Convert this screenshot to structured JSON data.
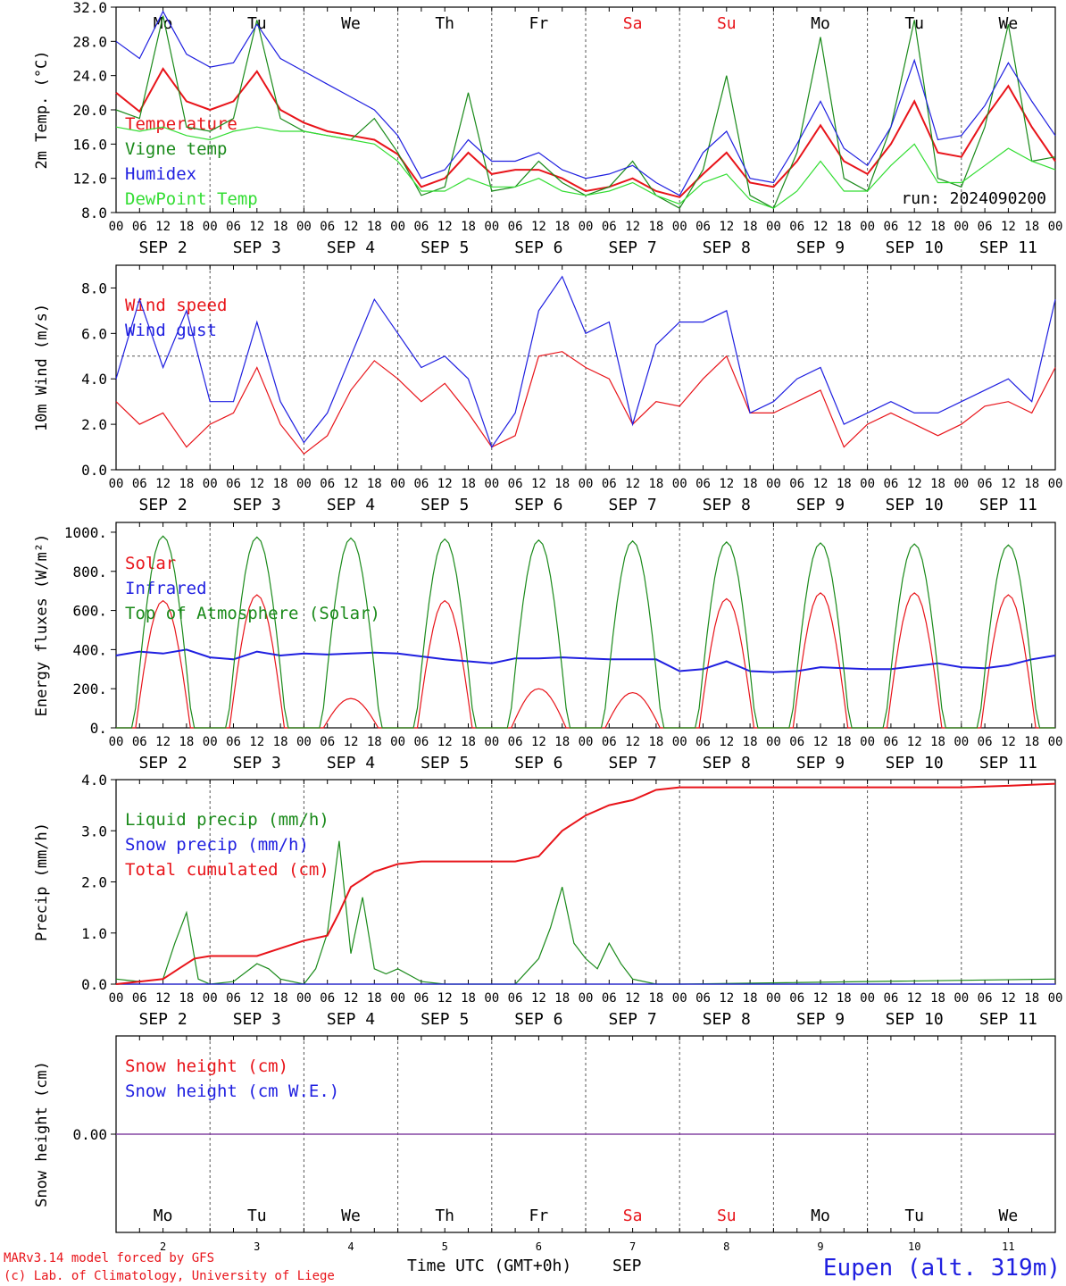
{
  "colors": {
    "red": "#e8141a",
    "green": "#1a8a1a",
    "blue": "#1f1fe0",
    "lightgreen": "#33dd33",
    "purple": "#7f3fa0",
    "axis": "#000000",
    "grid": "#555555"
  },
  "days": {
    "weekdays": [
      "Mo",
      "Tu",
      "We",
      "Th",
      "Fr",
      "Sa",
      "Su",
      "Mo",
      "Tu",
      "We"
    ],
    "weekend_flags": [
      false,
      false,
      false,
      false,
      false,
      true,
      true,
      false,
      false,
      false
    ],
    "dates": [
      "SEP  2",
      "SEP  3",
      "SEP  4",
      "SEP  5",
      "SEP  6",
      "SEP  7",
      "SEP  8",
      "SEP  9",
      "SEP 10",
      "SEP 11"
    ],
    "day_numbers": [
      "2",
      "3",
      "4",
      "5",
      "6",
      "7",
      "8",
      "9",
      "10",
      "11"
    ],
    "hour_ticks": [
      "00",
      "06",
      "12",
      "18"
    ],
    "final_tick": "00"
  },
  "footer": {
    "model_line": "MARv3.14 model forced by GFS",
    "copyright_line": "(c) Lab. of Climatology, University of Liege",
    "time_axis_label": "Time UTC (GMT+0h)",
    "month_label": "SEP",
    "station": "Eupen (alt. 319m)"
  },
  "chart_data": [
    {
      "id": "temperature",
      "type": "line",
      "ylabel": "2m Temp. (°C)",
      "ylim": [
        8.0,
        32.0
      ],
      "yticks": [
        "8.0",
        "12.0",
        "16.0",
        "20.0",
        "24.0",
        "28.0",
        "32.0"
      ],
      "annotation": "run: 2024090200",
      "x_hours": [
        0,
        6,
        12,
        18,
        24,
        30,
        36,
        42,
        48,
        54,
        60,
        66,
        72,
        78,
        84,
        90,
        96,
        102,
        108,
        114,
        120,
        126,
        132,
        138,
        144,
        150,
        156,
        162,
        168,
        174,
        180,
        186,
        192,
        198,
        204,
        210,
        216,
        222,
        228,
        234,
        240
      ],
      "series": [
        {
          "name": "Temperature",
          "color": "red",
          "values": [
            22.0,
            19.8,
            24.8,
            21.0,
            20.0,
            21.0,
            24.5,
            20.0,
            18.5,
            17.5,
            17.0,
            16.5,
            14.8,
            11.0,
            12.0,
            15.0,
            12.5,
            13.0,
            13.0,
            12.0,
            10.5,
            11.0,
            12.0,
            10.5,
            9.8,
            12.5,
            15.0,
            11.5,
            11.0,
            14.0,
            18.2,
            14.0,
            12.5,
            16.0,
            21.0,
            15.0,
            14.5,
            19.0,
            22.8,
            18.0,
            14.0
          ]
        },
        {
          "name": "Vigne temp",
          "color": "green",
          "values": [
            20.0,
            19.0,
            31.0,
            18.0,
            17.5,
            19.0,
            30.5,
            19.0,
            17.5,
            17.0,
            16.5,
            19.0,
            15.0,
            10.0,
            11.0,
            22.0,
            10.5,
            11.0,
            14.0,
            11.5,
            10.0,
            11.0,
            14.0,
            10.0,
            8.5,
            13.0,
            24.0,
            10.0,
            8.5,
            15.0,
            28.5,
            12.0,
            10.5,
            18.0,
            30.5,
            12.0,
            11.0,
            18.0,
            30.0,
            14.0,
            14.5
          ]
        },
        {
          "name": "Humidex",
          "color": "blue",
          "values": [
            28.0,
            26.0,
            31.5,
            26.5,
            25.0,
            25.5,
            30.0,
            26.0,
            24.5,
            23.0,
            21.5,
            20.0,
            17.0,
            12.0,
            13.0,
            16.5,
            14.0,
            14.0,
            15.0,
            13.0,
            12.0,
            12.5,
            13.5,
            11.5,
            10.0,
            15.0,
            17.5,
            12.0,
            11.5,
            16.0,
            21.0,
            15.5,
            13.5,
            18.0,
            25.8,
            16.5,
            17.0,
            20.5,
            25.5,
            21.0,
            17.0
          ]
        },
        {
          "name": "DewPoint Temp",
          "color": "lightgreen",
          "values": [
            18.0,
            17.5,
            18.0,
            17.0,
            16.5,
            17.5,
            18.0,
            17.5,
            17.5,
            17.0,
            16.5,
            16.0,
            14.0,
            10.5,
            10.5,
            12.0,
            11.0,
            11.0,
            12.0,
            10.5,
            10.0,
            10.5,
            11.5,
            10.0,
            9.0,
            11.5,
            12.5,
            9.5,
            8.5,
            10.5,
            14.0,
            10.5,
            10.5,
            13.5,
            16.0,
            11.5,
            11.5,
            13.5,
            15.5,
            14.0,
            13.0
          ]
        }
      ]
    },
    {
      "id": "wind",
      "type": "line",
      "ylabel": "10m Wind (m/s)",
      "ylim": [
        0.0,
        9.0
      ],
      "yticks": [
        "0.0",
        "2.0",
        "4.0",
        "6.0",
        "8.0"
      ],
      "reference_line": 5.0,
      "x_hours": [
        0,
        6,
        12,
        18,
        24,
        30,
        36,
        42,
        48,
        54,
        60,
        66,
        72,
        78,
        84,
        90,
        96,
        102,
        108,
        114,
        120,
        126,
        132,
        138,
        144,
        150,
        156,
        162,
        168,
        174,
        180,
        186,
        192,
        198,
        204,
        210,
        216,
        222,
        228,
        234,
        240
      ],
      "series": [
        {
          "name": "Wind speed",
          "color": "red",
          "values": [
            3.0,
            2.0,
            2.5,
            1.0,
            2.0,
            2.5,
            4.5,
            2.0,
            0.7,
            1.5,
            3.5,
            4.8,
            4.0,
            3.0,
            3.8,
            2.5,
            1.0,
            1.5,
            5.0,
            5.2,
            4.5,
            4.0,
            2.0,
            3.0,
            2.8,
            4.0,
            5.0,
            2.5,
            2.5,
            3.0,
            3.5,
            1.0,
            2.0,
            2.5,
            2.0,
            1.5,
            2.0,
            2.8,
            3.0,
            2.5,
            4.5
          ]
        },
        {
          "name": "Wind gust",
          "color": "blue",
          "values": [
            4.0,
            7.5,
            4.5,
            7.0,
            3.0,
            3.0,
            6.5,
            3.0,
            1.2,
            2.5,
            5.0,
            7.5,
            6.0,
            4.5,
            5.0,
            4.0,
            1.0,
            2.5,
            7.0,
            8.5,
            6.0,
            6.5,
            2.0,
            5.5,
            6.5,
            6.5,
            7.0,
            2.5,
            3.0,
            4.0,
            4.5,
            2.0,
            2.5,
            3.0,
            2.5,
            2.5,
            3.0,
            3.5,
            4.0,
            3.0,
            7.5
          ]
        }
      ]
    },
    {
      "id": "energy",
      "type": "line",
      "ylabel": "Energy fluxes (W/m²)",
      "ylim": [
        0,
        1050
      ],
      "yticks": [
        "0.",
        "200.",
        "400.",
        "600.",
        "800.",
        "1000."
      ],
      "series": [
        {
          "name": "Solar",
          "color": "red",
          "daily_peaks": [
            650,
            680,
            150,
            650,
            200,
            180,
            660,
            690,
            690,
            680
          ]
        },
        {
          "name": "Infrared",
          "color": "blue",
          "x_hours": [
            0,
            6,
            12,
            18,
            24,
            30,
            36,
            42,
            48,
            54,
            60,
            66,
            72,
            78,
            84,
            90,
            96,
            102,
            108,
            114,
            120,
            126,
            132,
            138,
            144,
            150,
            156,
            162,
            168,
            174,
            180,
            186,
            192,
            198,
            204,
            210,
            216,
            222,
            228,
            234,
            240
          ],
          "values": [
            370,
            390,
            380,
            400,
            360,
            350,
            390,
            370,
            380,
            375,
            380,
            385,
            380,
            365,
            350,
            340,
            330,
            355,
            355,
            360,
            355,
            350,
            350,
            350,
            290,
            300,
            340,
            290,
            285,
            290,
            310,
            305,
            300,
            300,
            315,
            330,
            310,
            305,
            320,
            350,
            370
          ]
        },
        {
          "name": "Top of Atmosphere (Solar)",
          "color": "green",
          "daily_peaks": [
            980,
            975,
            970,
            965,
            960,
            955,
            950,
            945,
            940,
            935
          ]
        }
      ]
    },
    {
      "id": "precip",
      "type": "line",
      "ylabel": "Precip (mm/h)",
      "ylim": [
        0.0,
        4.0
      ],
      "yticks": [
        "0.0",
        "1.0",
        "2.0",
        "3.0",
        "4.0"
      ],
      "series": [
        {
          "name": "Liquid precip (mm/h)",
          "color": "green",
          "x_hours": [
            0,
            6,
            12,
            15,
            18,
            21,
            24,
            30,
            36,
            39,
            42,
            48,
            51,
            54,
            57,
            60,
            63,
            66,
            69,
            72,
            78,
            84,
            90,
            96,
            102,
            108,
            111,
            114,
            117,
            120,
            123,
            126,
            129,
            132,
            138,
            144,
            240
          ],
          "values": [
            0.1,
            0.05,
            0.1,
            0.8,
            1.4,
            0.1,
            0.0,
            0.05,
            0.4,
            0.3,
            0.1,
            0.0,
            0.3,
            1.0,
            2.8,
            0.6,
            1.7,
            0.3,
            0.2,
            0.3,
            0.05,
            0.0,
            0.0,
            0.0,
            0.0,
            0.5,
            1.1,
            1.9,
            0.8,
            0.5,
            0.3,
            0.8,
            0.4,
            0.1,
            0.0,
            0.0,
            0.1
          ]
        },
        {
          "name": "Snow precip (mm/h)",
          "color": "blue",
          "x_hours": [
            0,
            240
          ],
          "values": [
            0.0,
            0.0
          ]
        },
        {
          "name": "Total cumulated (cm)",
          "color": "red",
          "x_hours": [
            0,
            12,
            16,
            20,
            24,
            36,
            48,
            54,
            57,
            60,
            66,
            72,
            78,
            84,
            102,
            108,
            114,
            120,
            126,
            132,
            138,
            144,
            156,
            168,
            192,
            216,
            228,
            240
          ],
          "values": [
            0.0,
            0.1,
            0.3,
            0.5,
            0.55,
            0.55,
            0.85,
            0.95,
            1.4,
            1.9,
            2.2,
            2.35,
            2.4,
            2.4,
            2.4,
            2.5,
            3.0,
            3.3,
            3.5,
            3.6,
            3.8,
            3.85,
            3.85,
            3.85,
            3.85,
            3.85,
            3.88,
            3.92
          ]
        }
      ]
    },
    {
      "id": "snow",
      "type": "line",
      "ylabel": "Snow height (cm)",
      "yticks": [
        "0.00"
      ],
      "series": [
        {
          "name": "Snow height (cm)",
          "color": "red",
          "values": [
            0.0,
            0.0
          ]
        },
        {
          "name": "Snow height (cm W.E.)",
          "color": "blue",
          "values": [
            0.0,
            0.0
          ]
        }
      ]
    }
  ]
}
